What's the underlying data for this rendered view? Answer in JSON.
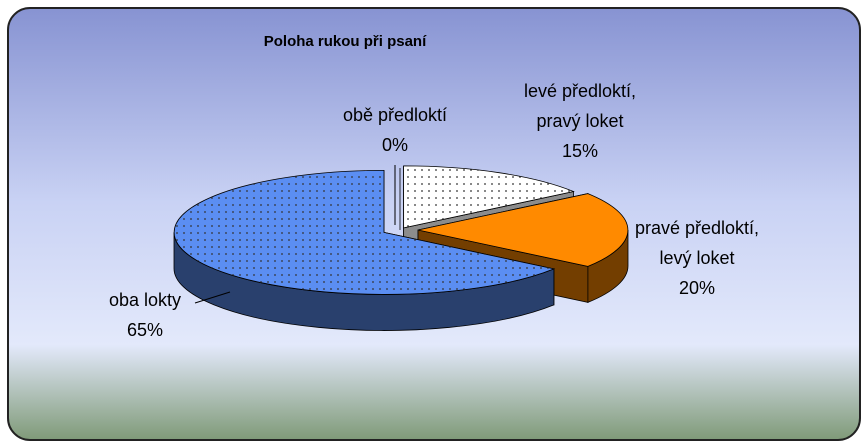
{
  "chart_data": {
    "type": "pie3d",
    "title": "Poloha rukou při psaní",
    "categories": [
      "obě předloktí",
      "levé předloktí, pravý loket",
      "pravé předloktí, levý loket",
      "oba lokty"
    ],
    "values": [
      0,
      15,
      20,
      65
    ],
    "value_labels": [
      "0%",
      "15%",
      "20%",
      "65%"
    ],
    "colors": [
      "#ffffff",
      "#ffffff",
      "#ff8a00",
      "#5b8ef2"
    ]
  }
}
